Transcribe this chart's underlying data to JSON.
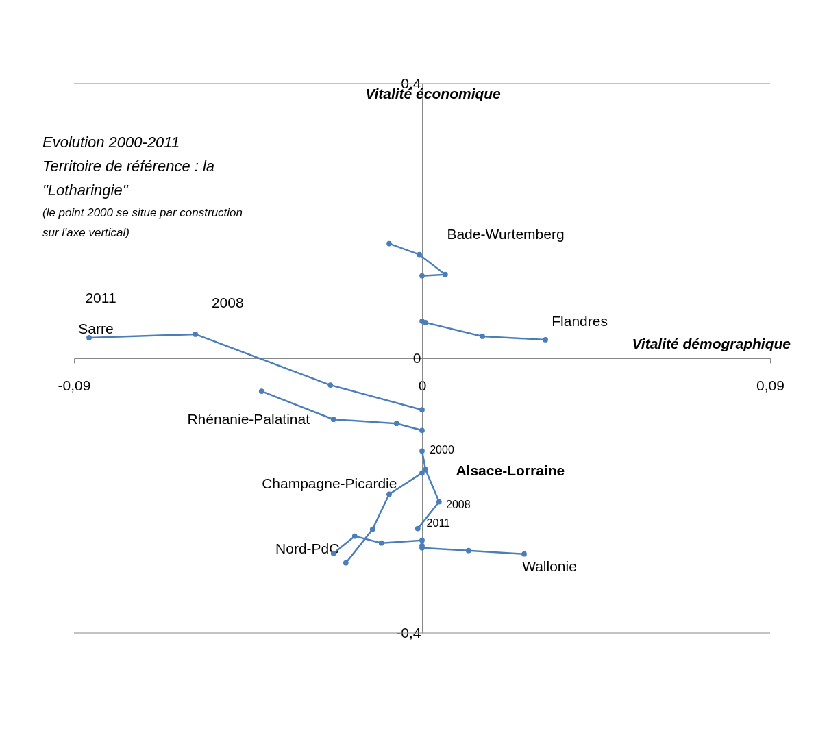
{
  "chart_data": {
    "type": "line",
    "xlabel": "Vitalité démographique",
    "ylabel": "Vitalité économique",
    "xlim": [
      -0.09,
      0.09
    ],
    "ylim": [
      -0.4,
      0.4
    ],
    "xticks": [
      {
        "value": -0.09,
        "label": "-0,09"
      },
      {
        "value": 0,
        "label": "0"
      },
      {
        "value": 0.09,
        "label": "0,09"
      }
    ],
    "yticks": [
      {
        "value": -0.4,
        "label": "-0,4"
      },
      {
        "value": 0,
        "label": "0"
      },
      {
        "value": 0.4,
        "label": "0,4"
      }
    ],
    "legend": false,
    "marker": "circle",
    "line_style": "solid",
    "series": [
      {
        "name": "Bade-Wurtemberg",
        "color": "#4a7ebb",
        "x": [
          0,
          0.006,
          -0.0007,
          -0.0085
        ],
        "values": [
          0.12,
          0.122,
          0.151,
          0.167
        ]
      },
      {
        "name": "Flandres",
        "color": "#4a7ebb",
        "x": [
          0,
          0.0009,
          0.0156,
          0.0319
        ],
        "values": [
          0.054,
          0.052,
          0.032,
          0.027
        ]
      },
      {
        "name": "Sarre",
        "color": "#4a7ebb",
        "x": [
          0,
          -0.0237,
          -0.0586,
          -0.0861
        ],
        "values": [
          -0.075,
          -0.039,
          0.035,
          0.03
        ]
      },
      {
        "name": "Rhénanie-Palatinat",
        "color": "#4a7ebb",
        "x": [
          0,
          -0.0066,
          -0.0229,
          -0.0415
        ],
        "values": [
          -0.105,
          -0.095,
          -0.089,
          -0.048
        ]
      },
      {
        "name": "Alsace-Lorraine",
        "color": "#4a7ebb",
        "x": [
          0,
          0.0009,
          0.0044,
          -0.0011
        ],
        "values": [
          -0.135,
          -0.162,
          -0.209,
          -0.248
        ]
      },
      {
        "name": "Champagne-Picardie",
        "color": "#4a7ebb",
        "x": [
          0,
          -0.0085,
          -0.0128,
          -0.0197
        ],
        "values": [
          -0.167,
          -0.198,
          -0.249,
          -0.298
        ]
      },
      {
        "name": "Nord-PdC",
        "color": "#4a7ebb",
        "x": [
          0,
          -0.0105,
          -0.0174,
          -0.0229
        ],
        "values": [
          -0.265,
          -0.269,
          -0.259,
          -0.284
        ]
      },
      {
        "name": "Wallonie",
        "color": "#4a7ebb",
        "x": [
          0,
          0,
          0.012,
          0.0264
        ],
        "values": [
          -0.273,
          -0.276,
          -0.28,
          -0.285
        ]
      }
    ],
    "annotations": [
      "Evolution 2000-2011",
      "Territoire de référence : la",
      "\"Lotharingie\"",
      "(le point 2000  se situe par construction",
      "sur l'axe vertical)",
      {
        "text": "2011",
        "x": -0.0861,
        "y": 0.03
      },
      {
        "text": "2008",
        "x": -0.0586,
        "y": 0.035
      },
      {
        "text": "2000",
        "x": 0,
        "y": -0.135
      },
      {
        "text": "2008",
        "x": 0.0044,
        "y": -0.209
      },
      {
        "text": "2011",
        "x": -0.0011,
        "y": -0.248
      }
    ]
  }
}
